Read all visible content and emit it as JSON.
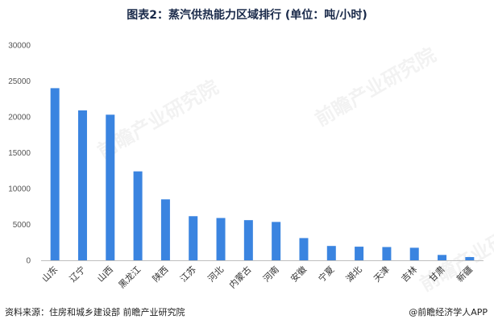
{
  "title": "图表2：蒸汽供热能力区域排行 (单位：吨/小时)",
  "footer": {
    "source": "资料来源：住房和城乡建设部 前瞻产业研究院",
    "brand": "@前瞻经济学人APP"
  },
  "watermark": "前瞻产业研究院",
  "colors": {
    "bar": "#3a84e0",
    "grid": "#d9d9d9",
    "title": "#1a2a4a"
  },
  "chart_data": {
    "type": "bar",
    "title": "图表2：蒸汽供热能力区域排行 (单位：吨/小时)",
    "categories": [
      "山东",
      "辽宁",
      "山西",
      "黑龙江",
      "陕西",
      "江苏",
      "河北",
      "内蒙古",
      "河南",
      "安徽",
      "宁夏",
      "湖北",
      "天津",
      "吉林",
      "甘肃",
      "新疆"
    ],
    "values": [
      24000,
      20900,
      20300,
      12400,
      8500,
      6150,
      5900,
      5600,
      5350,
      3100,
      2000,
      1900,
      1850,
      1750,
      750,
      450
    ],
    "ylim": [
      0,
      30000
    ],
    "yticks": [
      0,
      5000,
      10000,
      15000,
      20000,
      25000,
      30000
    ],
    "grid": false,
    "xlabel": "",
    "ylabel": ""
  }
}
